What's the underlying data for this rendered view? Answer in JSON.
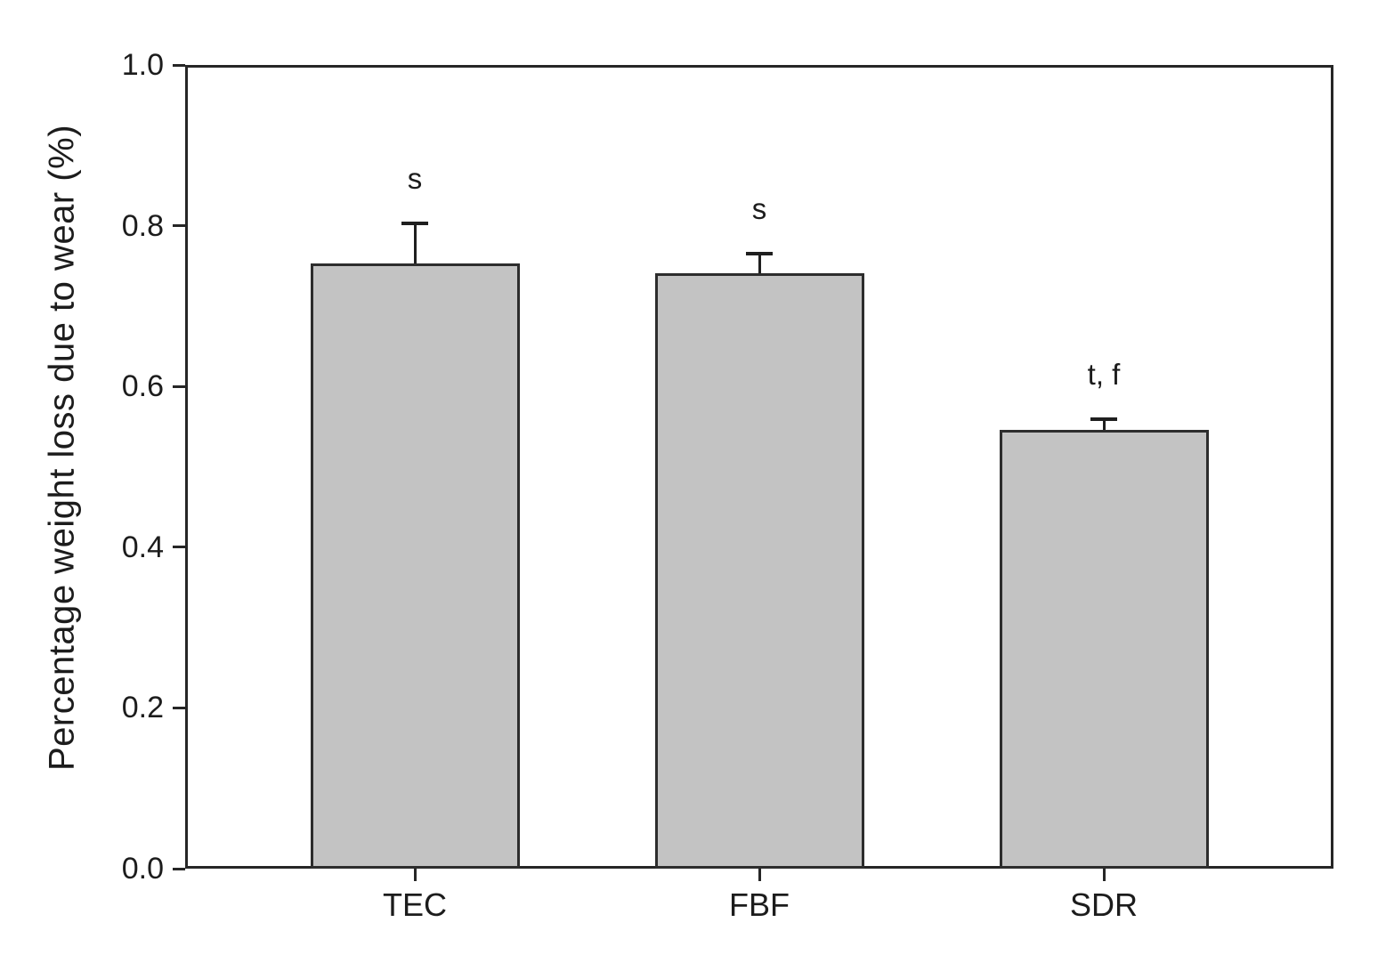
{
  "chart_data": {
    "type": "bar",
    "categories": [
      "TEC",
      "FBF",
      "SDR"
    ],
    "values": [
      0.753,
      0.741,
      0.546
    ],
    "errors_plus": [
      0.05,
      0.024,
      0.013
    ],
    "annotations": [
      "s",
      "s",
      "t, f"
    ],
    "title": "",
    "xlabel": "",
    "ylabel": "Percentage weight loss due to wear (%)",
    "ylim": [
      0.0,
      1.0
    ],
    "yticks": [
      0.0,
      0.2,
      0.4,
      0.6,
      0.8,
      1.0
    ],
    "ytick_labels": [
      "0.0",
      "0.2",
      "0.4",
      "0.6",
      "0.8",
      "1.0"
    ],
    "grid": false,
    "legend_position": "none",
    "bar_fill_color": "#c3c3c3",
    "bar_border_color": "#2d2d2d",
    "axis_color": "#262626",
    "text_color": "#1c1c1c"
  }
}
